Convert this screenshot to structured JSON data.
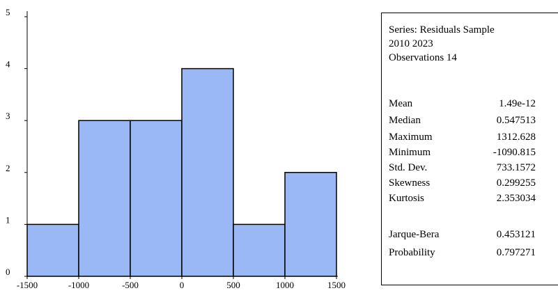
{
  "chart_data": {
    "type": "bar",
    "bin_edges": [
      -1500,
      -1000,
      -500,
      0,
      500,
      1000,
      1500
    ],
    "values": [
      1,
      3,
      3,
      4,
      1,
      2
    ],
    "xlim": [
      -1500,
      1500
    ],
    "ylim": [
      0,
      5
    ],
    "x_ticks": [
      "-1500",
      "-1000",
      "-500",
      "0",
      "500",
      "1000",
      "1500"
    ],
    "y_ticks": [
      "0",
      "1",
      "2",
      "3",
      "4",
      "5"
    ],
    "title": "",
    "xlabel": "",
    "ylabel": "",
    "grid": false,
    "colors": {
      "bar_fill": "#99b8f5",
      "bar_stroke": "#000000"
    }
  },
  "stats": {
    "series_line": "Series: Residuals Sample",
    "sample_line": "2010 2023",
    "observations_line": "Observations 14",
    "rows": [
      {
        "label": "Mean",
        "value": "1.49e-12"
      },
      {
        "label": "Median",
        "value": "0.547513"
      },
      {
        "label": "Maximum",
        "value": "1312.628"
      },
      {
        "label": "Minimum",
        "value": "-1090.815"
      },
      {
        "label": "Std. Dev.",
        "value": "733.1572"
      },
      {
        "label": "Skewness",
        "value": "0.299255"
      },
      {
        "label": "Kurtosis",
        "value": "2.353034"
      }
    ],
    "test_rows": [
      {
        "label": "Jarque-Bera",
        "value": "0.453121"
      },
      {
        "label": "Probability",
        "value": "0.797271"
      }
    ]
  }
}
